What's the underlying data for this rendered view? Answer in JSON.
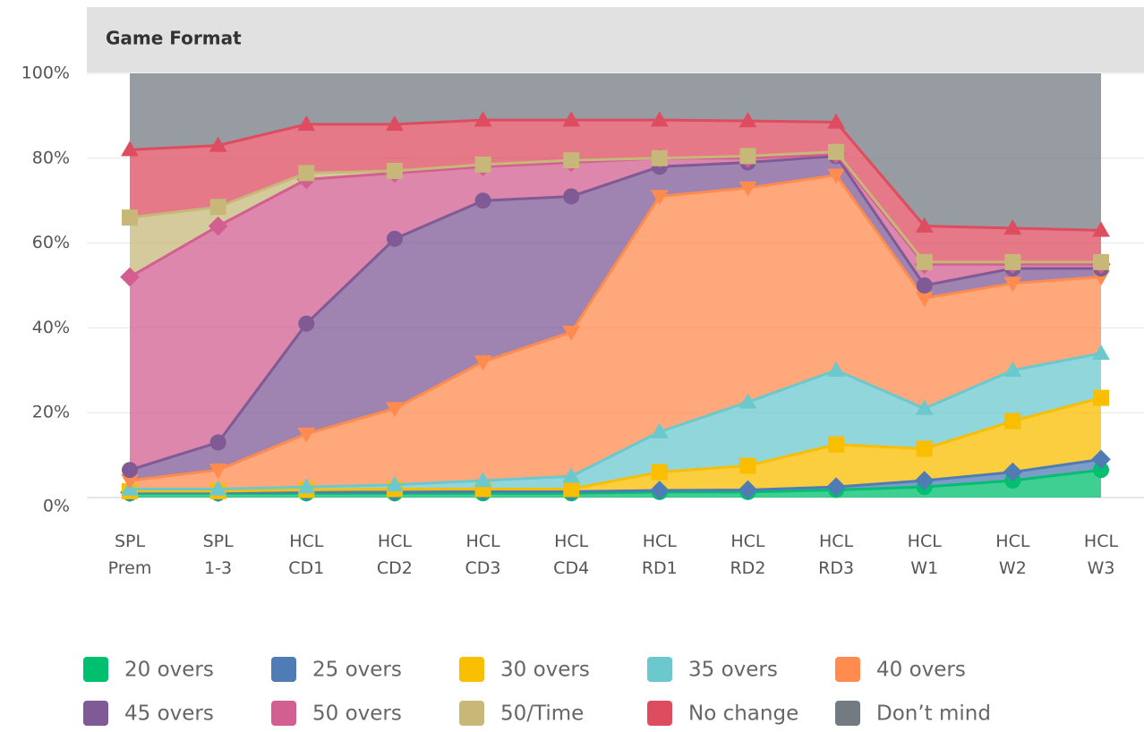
{
  "chart_data": {
    "type": "stacked_area",
    "title": "Game Format",
    "categories": [
      "SPL Prem",
      "SPL 1-3",
      "HCL CD1",
      "HCL CD2",
      "HCL CD3",
      "HCL CD4",
      "HCL RD1",
      "HCL RD2",
      "HCL RD3",
      "HCL W1",
      "HCL W2",
      "HCL W3"
    ],
    "series": [
      {
        "name": "20 overs",
        "color": "#00bf6f",
        "values": [
          1,
          1,
          1,
          1,
          1,
          1,
          1.3,
          1.3,
          1.8,
          2.5,
          4,
          6.5
        ]
      },
      {
        "name": "25 overs",
        "color": "#507cb6",
        "values": [
          0.2,
          0.2,
          0.3,
          0.3,
          0.4,
          0.4,
          0.4,
          0.5,
          0.7,
          1.5,
          2,
          2.5
        ]
      },
      {
        "name": "30 overs",
        "color": "#f9be00",
        "values": [
          0.3,
          0.3,
          0.5,
          0.7,
          0.6,
          0.6,
          4.3,
          5.7,
          10,
          7.5,
          12,
          14.5
        ]
      },
      {
        "name": "35 overs",
        "color": "#6bc8cd",
        "values": [
          0.5,
          0.5,
          0.7,
          1,
          2,
          3,
          9.5,
          15,
          17.5,
          9.5,
          12,
          10.5
        ]
      },
      {
        "name": "40 overs",
        "color": "#ff8b4f",
        "values": [
          2,
          4.5,
          12.5,
          18,
          28,
          34,
          55.5,
          50.5,
          46,
          26,
          20.5,
          18
        ]
      },
      {
        "name": "45 overs",
        "color": "#7f5a95",
        "values": [
          2.5,
          6.5,
          26,
          40,
          38,
          32,
          7,
          6,
          4.5,
          3,
          3.5,
          2
        ]
      },
      {
        "name": "50 overs",
        "color": "#d25f90",
        "values": [
          45.5,
          51,
          34,
          15.5,
          8,
          8,
          2,
          1,
          0.5,
          5,
          1,
          1
        ]
      },
      {
        "name": "50/Time",
        "color": "#c7b879",
        "values": [
          14,
          4.5,
          1.5,
          0.5,
          0.5,
          0.5,
          0,
          0.5,
          0.5,
          0.5,
          0.5,
          0.5
        ]
      },
      {
        "name": "No change",
        "color": "#dd4c5f",
        "values": [
          16,
          14.5,
          11.5,
          11,
          10.5,
          9.5,
          9,
          8.3,
          7,
          8.5,
          8,
          7.5
        ]
      },
      {
        "name": "Don’t mind",
        "color": "#737b82",
        "values": [
          18,
          17,
          12,
          12,
          11,
          11,
          11,
          11.2,
          11.5,
          36,
          36.5,
          37
        ]
      }
    ],
    "ylim": [
      0,
      100
    ],
    "yticks": [
      {
        "value": 0,
        "label": "0%"
      },
      {
        "value": 20,
        "label": "20%"
      },
      {
        "value": 40,
        "label": "40%"
      },
      {
        "value": 60,
        "label": "60%"
      },
      {
        "value": 80,
        "label": "80%"
      },
      {
        "value": 100,
        "label": "100%"
      }
    ],
    "grid": true
  }
}
